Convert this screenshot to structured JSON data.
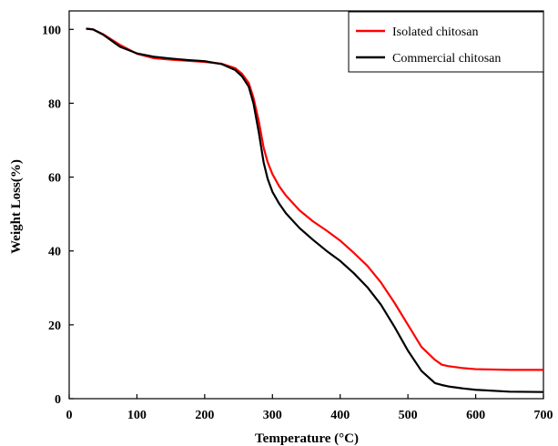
{
  "chart_data": {
    "type": "line",
    "title": "",
    "xlabel": "Temperature (°C)",
    "ylabel": "Weight Loss(%)",
    "xlim": [
      0,
      700
    ],
    "ylim": [
      0,
      105
    ],
    "xticks": [
      0,
      100,
      200,
      300,
      400,
      500,
      600,
      700
    ],
    "yticks": [
      0,
      20,
      40,
      60,
      80,
      100
    ],
    "grid": false,
    "legend_position": "top-right",
    "series": [
      {
        "name": "Isolated chitosan",
        "color": "#ff0000",
        "x": [
          25,
          35,
          50,
          75,
          100,
          125,
          150,
          175,
          200,
          225,
          245,
          255,
          265,
          272,
          280,
          287,
          293,
          300,
          310,
          320,
          340,
          360,
          380,
          400,
          420,
          440,
          460,
          480,
          500,
          520,
          540,
          550,
          560,
          580,
          600,
          650,
          700
        ],
        "y": [
          100.2,
          100,
          98.7,
          95.8,
          93.4,
          92.2,
          91.8,
          91.5,
          91.2,
          90.7,
          89.5,
          88,
          85.5,
          81.5,
          75,
          68,
          64,
          60.8,
          57.5,
          55,
          51,
          48,
          45.5,
          42.8,
          39.5,
          36,
          31.5,
          26,
          20,
          14,
          10.5,
          9.2,
          8.8,
          8.3,
          8,
          7.8,
          7.8
        ]
      },
      {
        "name": "Commercial chitosan",
        "color": "#000000",
        "x": [
          25,
          35,
          50,
          75,
          100,
          125,
          150,
          175,
          200,
          225,
          245,
          255,
          265,
          272,
          280,
          287,
          293,
          300,
          310,
          320,
          340,
          360,
          380,
          400,
          420,
          440,
          460,
          480,
          500,
          520,
          540,
          550,
          560,
          580,
          600,
          650,
          700
        ],
        "y": [
          100.2,
          100,
          98.6,
          95.3,
          93.5,
          92.6,
          92.1,
          91.7,
          91.4,
          90.6,
          89,
          87.3,
          84.5,
          80,
          72,
          64,
          59.5,
          56,
          52.8,
          50.2,
          46.2,
          43,
          40,
          37.3,
          34,
          30.2,
          25.5,
          19.5,
          13,
          7.5,
          4.2,
          3.7,
          3.3,
          2.8,
          2.4,
          1.9,
          1.8
        ]
      }
    ]
  }
}
